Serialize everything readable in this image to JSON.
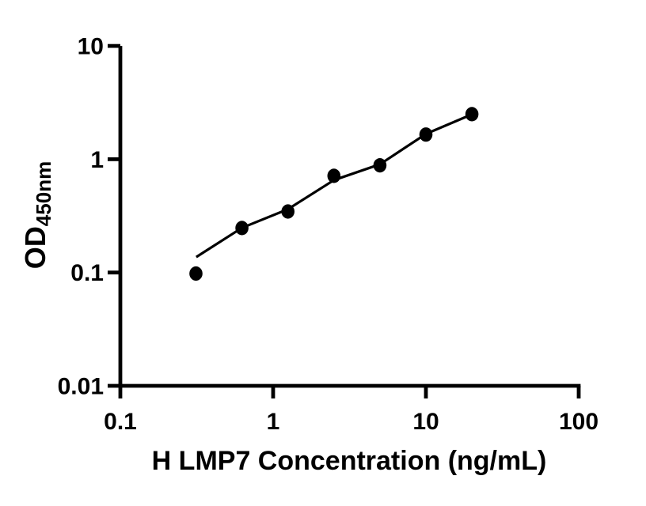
{
  "chart_data": {
    "type": "scatter",
    "title": "",
    "xlabel": "H LMP7 Concentration (ng/mL)",
    "ylabel_main": "OD",
    "ylabel_sub": "450nm",
    "x_scale": "log",
    "y_scale": "log",
    "xlim": [
      0.1,
      100
    ],
    "ylim": [
      0.01,
      10
    ],
    "x_tick_values": [
      0.1,
      1,
      10,
      100
    ],
    "x_tick_labels": [
      "0.1",
      "1",
      "10",
      "100"
    ],
    "y_tick_values": [
      0.01,
      0.1,
      1,
      10
    ],
    "y_tick_labels": [
      "0.01",
      "0.1",
      "1",
      "10"
    ],
    "grid": false,
    "legend": false,
    "series": [
      {
        "name": "standard-curve-points",
        "marker": "circle",
        "color": "#000000",
        "points": [
          {
            "x": 0.3125,
            "y": 0.098
          },
          {
            "x": 0.625,
            "y": 0.247
          },
          {
            "x": 1.25,
            "y": 0.346
          },
          {
            "x": 2.5,
            "y": 0.714
          },
          {
            "x": 5,
            "y": 0.883
          },
          {
            "x": 10,
            "y": 1.651
          },
          {
            "x": 20,
            "y": 2.5
          }
        ]
      }
    ],
    "fit_line": {
      "color": "#000000",
      "points": [
        {
          "x": 0.314,
          "y": 0.137
        },
        {
          "x": 0.625,
          "y": 0.248
        },
        {
          "x": 1.25,
          "y": 0.362
        },
        {
          "x": 2.5,
          "y": 0.654
        },
        {
          "x": 5,
          "y": 0.902
        },
        {
          "x": 10,
          "y": 1.673
        },
        {
          "x": 20,
          "y": 2.49
        }
      ]
    },
    "colors": {
      "axis": "#000000",
      "marker": "#000000",
      "background": "#ffffff"
    }
  }
}
